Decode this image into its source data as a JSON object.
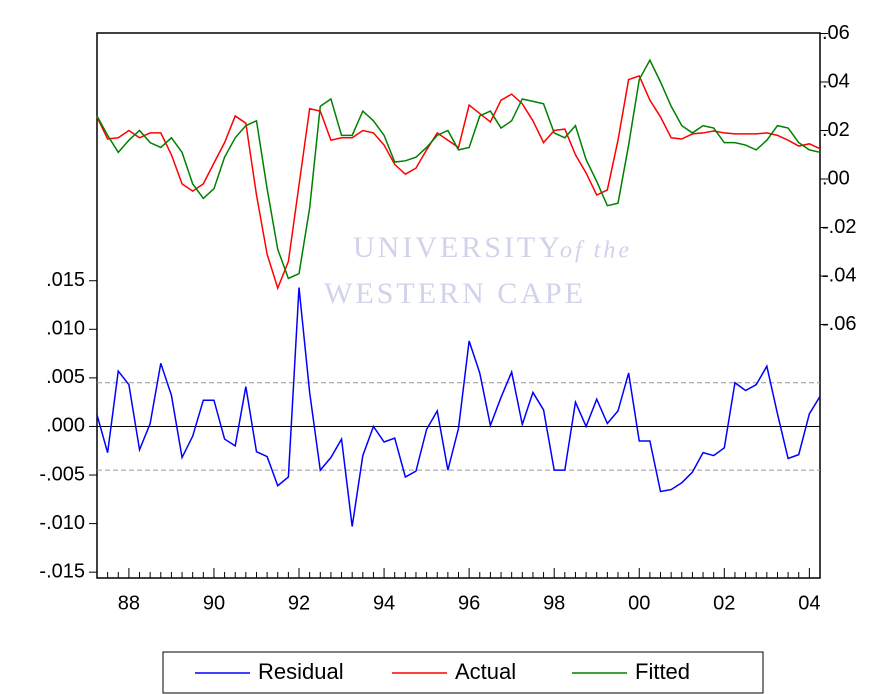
{
  "chart_data": {
    "type": "line",
    "watermark": [
      "UNIVERSITY",
      "of the",
      "WESTERN CAPE"
    ],
    "categories": [
      null,
      null,
      null,
      "88",
      null,
      null,
      null,
      null,
      null,
      null,
      null,
      "90",
      null,
      null,
      null,
      null,
      null,
      null,
      null,
      "92",
      null,
      null,
      null,
      null,
      null,
      null,
      null,
      "94",
      null,
      null,
      null,
      null,
      null,
      null,
      null,
      "96",
      null,
      null,
      null,
      null,
      null,
      null,
      null,
      "98",
      null,
      null,
      null,
      null,
      null,
      null,
      null,
      "00",
      null,
      null,
      null,
      null,
      null,
      null,
      null,
      "02",
      null,
      null,
      null,
      null,
      null,
      null,
      null,
      "04",
      null
    ],
    "series": [
      {
        "name": "Residual",
        "color": "#0000ff",
        "axis": "y",
        "values": [
          0.0012,
          -0.0027,
          0.0057,
          0.0043,
          -0.0024,
          0.0003,
          0.0065,
          0.0032,
          -0.0032,
          -0.001,
          0.0027,
          0.0027,
          -0.0013,
          -0.002,
          0.0041,
          -0.0026,
          -0.0031,
          -0.0061,
          -0.0052,
          0.0143,
          0.0035,
          -0.0045,
          -0.0032,
          -0.0013,
          -0.0103,
          -0.003,
          0.0,
          -0.0016,
          -0.0012,
          -0.0052,
          -0.0046,
          -0.0003,
          0.0016,
          -0.0045,
          -0.0002,
          0.0088,
          0.0055,
          0.0001,
          0.003,
          0.0056,
          0.0002,
          0.0035,
          0.0017,
          -0.0045,
          -0.0045,
          0.0025,
          0.0,
          0.0028,
          0.0003,
          0.0016,
          0.0055,
          -0.0015,
          -0.0015,
          -0.0067,
          -0.0065,
          -0.0058,
          -0.0047,
          -0.0027,
          -0.003,
          -0.0022,
          0.0045,
          0.0037,
          0.0043,
          0.0062,
          0.0013,
          -0.0033,
          -0.0029,
          0.0013,
          0.0031
        ]
      },
      {
        "name": "Actual",
        "color": "#ff0000",
        "axis": "y2",
        "values": [
          0.0256,
          0.0165,
          0.017,
          0.02,
          0.017,
          0.019,
          0.019,
          0.01,
          -0.002,
          -0.005,
          -0.002,
          0.0066,
          0.015,
          0.026,
          0.023,
          -0.0066,
          -0.031,
          -0.045,
          -0.034,
          -0.0025,
          0.029,
          0.028,
          0.016,
          0.017,
          0.017,
          0.02,
          0.019,
          0.014,
          0.006,
          0.002,
          0.0045,
          0.012,
          0.019,
          0.016,
          0.013,
          0.0305,
          0.027,
          0.0235,
          0.0325,
          0.035,
          0.031,
          0.024,
          0.015,
          0.02,
          0.0206,
          0.01,
          0.0025,
          -0.0066,
          -0.0045,
          0.016,
          0.041,
          0.0425,
          0.0325,
          0.0256,
          0.017,
          0.0165,
          0.0186,
          0.019,
          0.0198,
          0.019,
          0.0186,
          0.0186,
          0.0186,
          0.019,
          0.018,
          0.016,
          0.0136,
          0.0145,
          0.0125
        ]
      },
      {
        "name": "Fitted",
        "color": "#008000",
        "axis": "y2",
        "values": [
          0.026,
          0.018,
          0.011,
          0.016,
          0.02,
          0.015,
          0.013,
          0.017,
          0.011,
          -0.002,
          -0.008,
          -0.004,
          0.009,
          0.017,
          0.022,
          0.024,
          -0.004,
          -0.029,
          -0.041,
          -0.039,
          -0.012,
          0.03,
          0.033,
          0.018,
          0.018,
          0.028,
          0.024,
          0.018,
          0.007,
          0.0075,
          0.009,
          0.013,
          0.018,
          0.02,
          0.012,
          0.013,
          0.026,
          0.028,
          0.021,
          0.024,
          0.033,
          0.032,
          0.031,
          0.019,
          0.017,
          0.022,
          0.008,
          -0.001,
          -0.011,
          -0.01,
          0.014,
          0.041,
          0.049,
          0.04,
          0.03,
          0.022,
          0.019,
          0.022,
          0.021,
          0.015,
          0.015,
          0.014,
          0.012,
          0.016,
          0.022,
          0.021,
          0.015,
          0.012,
          0.011
        ]
      }
    ],
    "ylim": [
      -0.0156,
      0.0405
    ],
    "yticks": [
      {
        "value": -0.015,
        "label": "-.015"
      },
      {
        "value": -0.01,
        "label": "-.010"
      },
      {
        "value": -0.005,
        "label": "-.005"
      },
      {
        "value": 0,
        "label": ".000"
      },
      {
        "value": 0.005,
        "label": ".005"
      },
      {
        "value": 0.01,
        "label": ".010"
      },
      {
        "value": 0.015,
        "label": ".015"
      }
    ],
    "y2lim": [
      -0.1645,
      0.0602
    ],
    "y2ticks": [
      {
        "value": -0.06,
        "label": "-.06"
      },
      {
        "value": -0.04,
        "label": "-.04"
      },
      {
        "value": -0.02,
        "label": "-.02"
      },
      {
        "value": 0,
        "label": ".00"
      },
      {
        "value": 0.02,
        "label": ".02"
      },
      {
        "value": 0.04,
        "label": ".04"
      },
      {
        "value": 0.06,
        "label": ".06"
      }
    ],
    "hlines": [
      0.0045,
      -0.0045
    ],
    "zero_line": true,
    "legend": "bottom"
  }
}
